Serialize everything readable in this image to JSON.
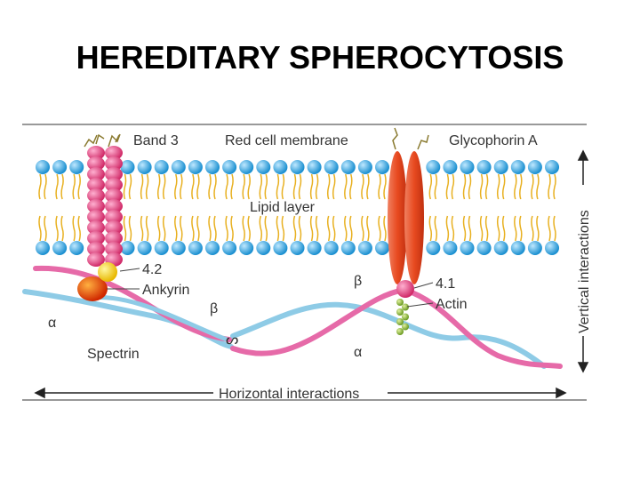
{
  "title": "HEREDITARY SPHEROCYTOSIS",
  "labels": {
    "band3": "Band 3",
    "membrane": "Red cell membrane",
    "glycophorin": "Glycophorin A",
    "lipid": "Lipid layer",
    "p42": "4.2",
    "ankyrin": "Ankyrin",
    "beta_left": "β",
    "alpha_left": "α",
    "spectrin": "Spectrin",
    "beta_right": "β",
    "p41": "4.1",
    "actin": "Actin",
    "alpha_right": "α",
    "vertical": "Vertical interactions",
    "horizontal": "Horizontal interactions"
  },
  "colors": {
    "lipid_head": "#29a3dc",
    "lipid_tail": "#e8b020",
    "band3": "#e0407a",
    "glycophorin": "#e8502a",
    "spectrin_alpha": "#8ecbe6",
    "spectrin_beta": "#e66aa8",
    "actin": "#8cbf3a",
    "protein42": "#f5d020",
    "ankyrin": "#e05a10"
  }
}
